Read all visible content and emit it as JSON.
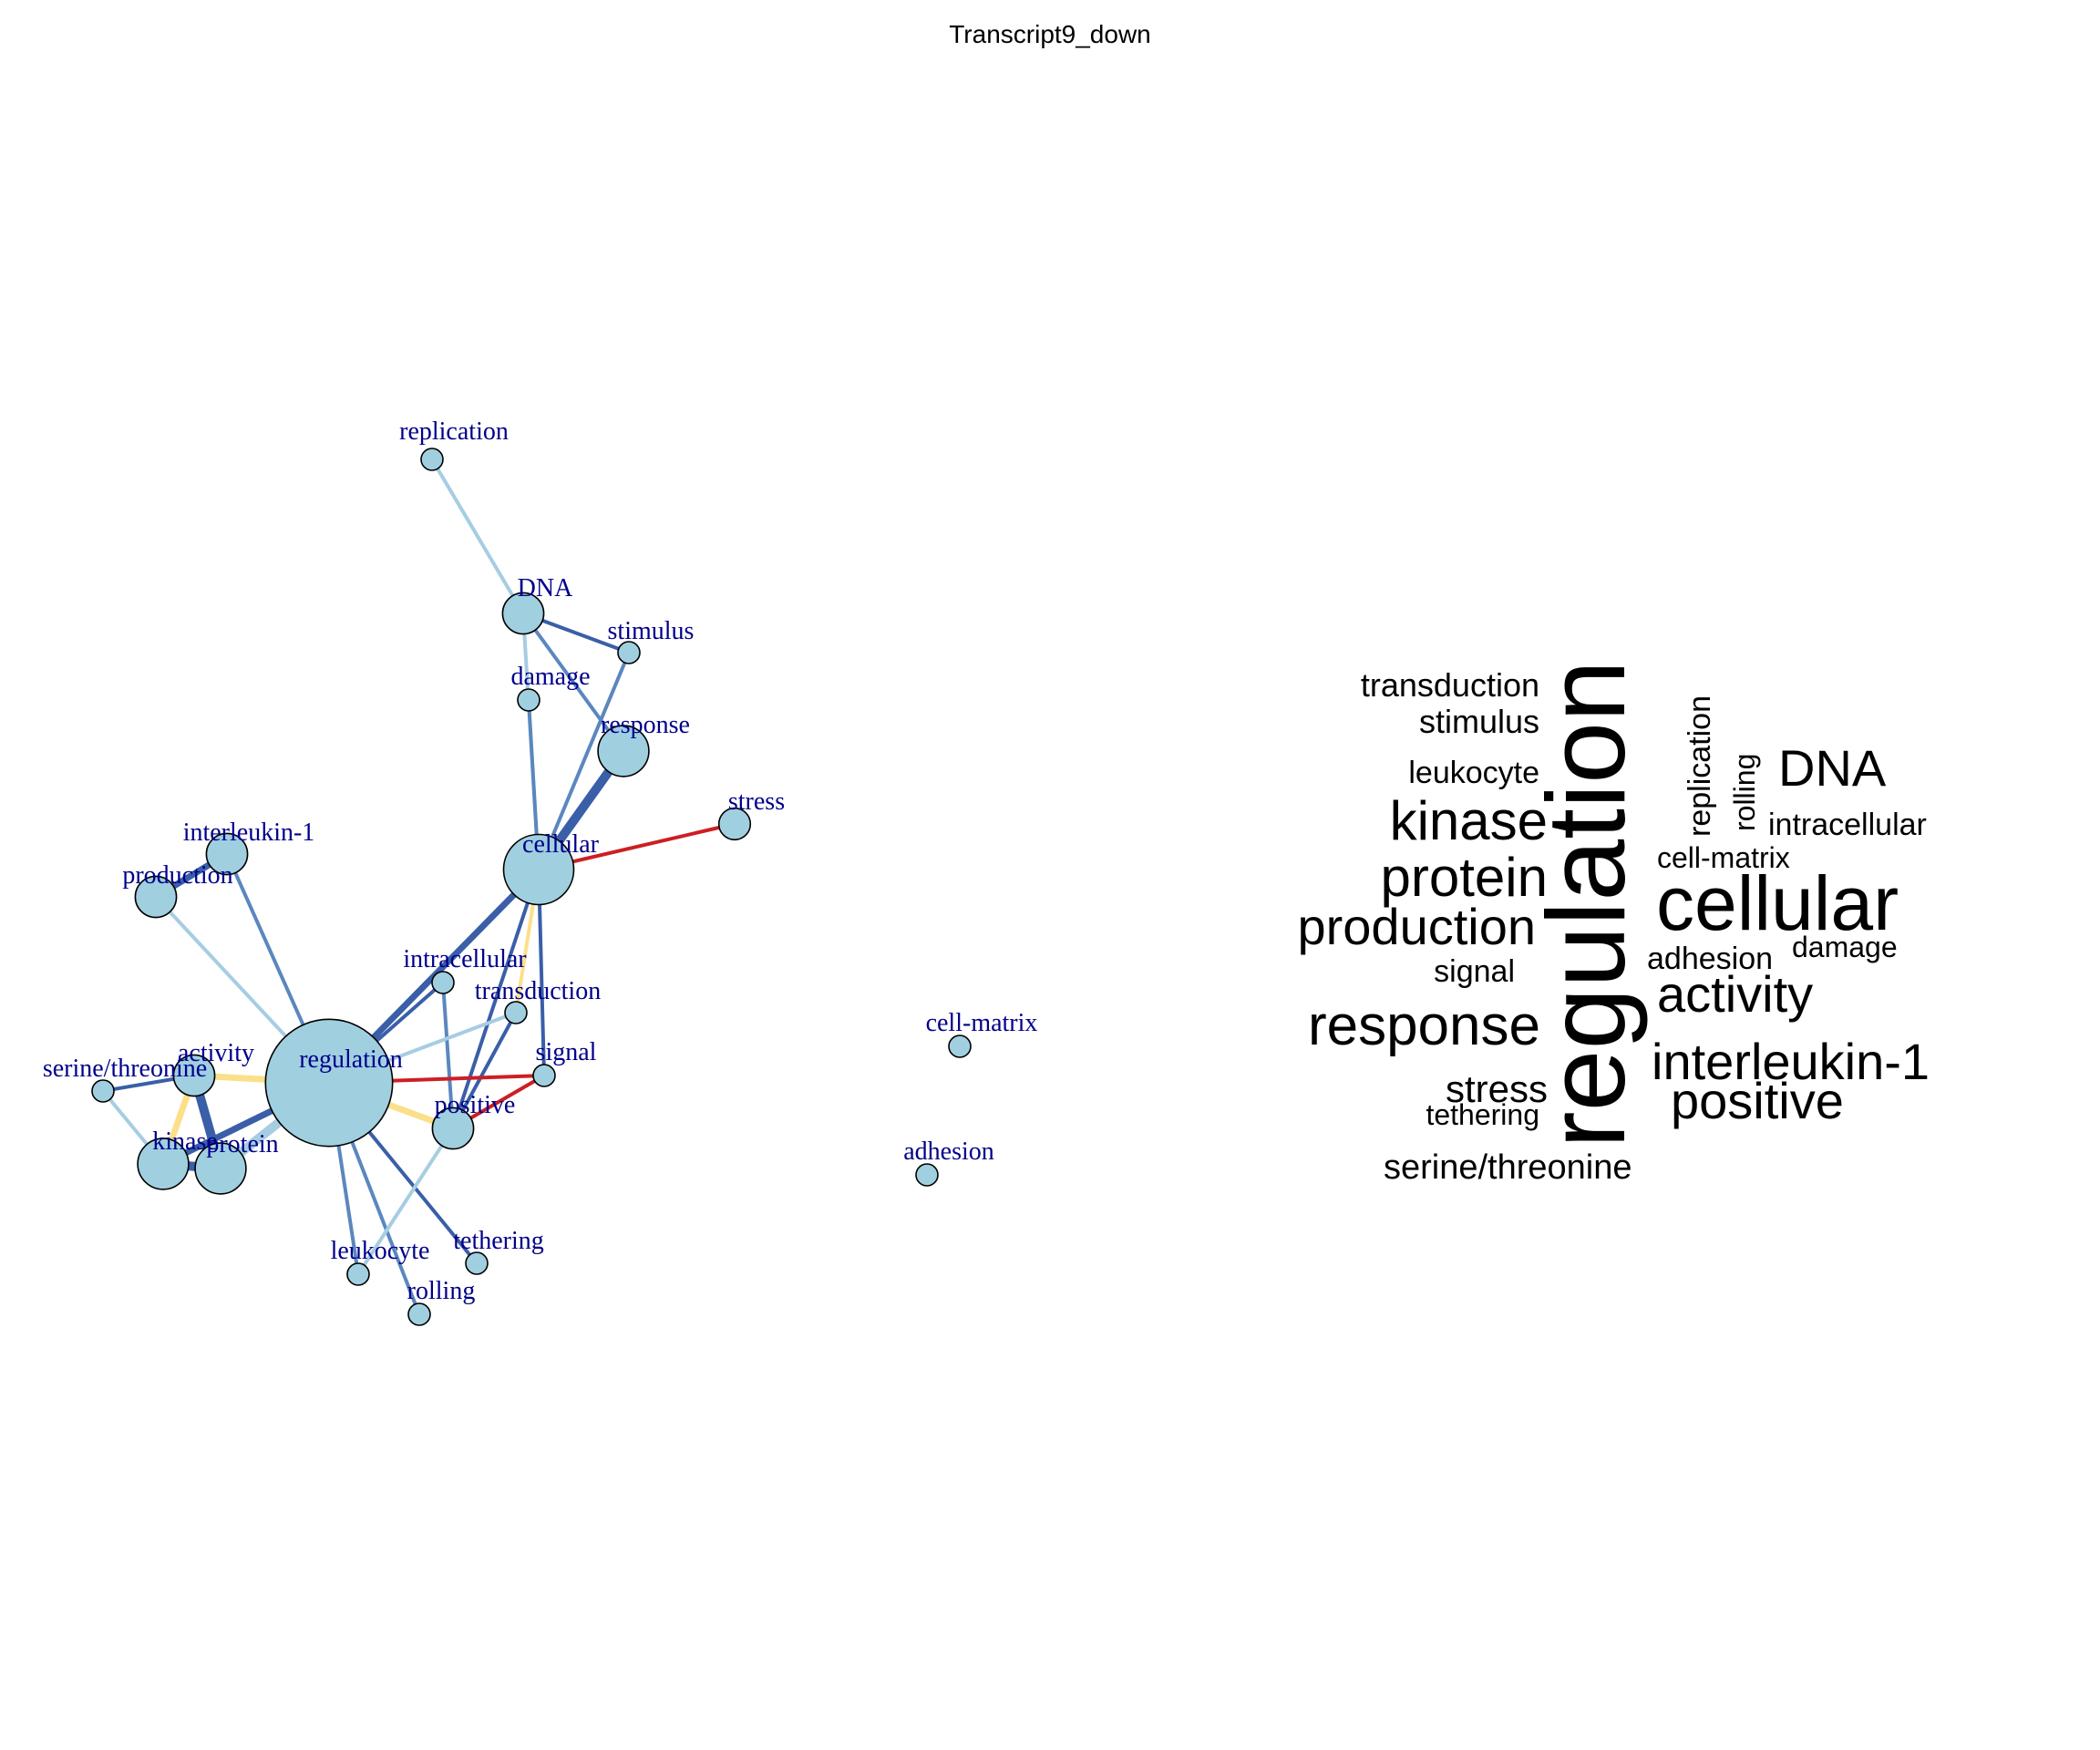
{
  "title": "Transcript9_down",
  "colors": {
    "node_fill": "#a0cfe0",
    "node_stroke": "#000000",
    "label": "#00008b",
    "edge_dark": "#3a5fa8",
    "edge_mid": "#5b87bf",
    "edge_light": "#a6cde2",
    "edge_yellow": "#fbe08a",
    "edge_red": "#cc1f24",
    "cloud_text": "#000000"
  },
  "network": {
    "nodes": [
      {
        "id": "replication",
        "label": "replication",
        "size": 1
      },
      {
        "id": "DNA",
        "label": "DNA",
        "size": 3
      },
      {
        "id": "stimulus",
        "label": "stimulus",
        "size": 1
      },
      {
        "id": "damage",
        "label": "damage",
        "size": 1
      },
      {
        "id": "response",
        "label": "response",
        "size": 4
      },
      {
        "id": "stress",
        "label": "stress",
        "size": 2
      },
      {
        "id": "cellular",
        "label": "cellular",
        "size": 6
      },
      {
        "id": "interleukin-1",
        "label": "interleukin-1",
        "size": 3
      },
      {
        "id": "production",
        "label": "production",
        "size": 3
      },
      {
        "id": "intracellular",
        "label": "intracellular",
        "size": 1
      },
      {
        "id": "transduction",
        "label": "transduction",
        "size": 1
      },
      {
        "id": "signal",
        "label": "signal",
        "size": 1
      },
      {
        "id": "regulation",
        "label": "regulation",
        "size": 10
      },
      {
        "id": "activity",
        "label": "activity",
        "size": 3
      },
      {
        "id": "serine/threonine",
        "label": "serine/threonine",
        "size": 1
      },
      {
        "id": "positive",
        "label": "positive",
        "size": 3
      },
      {
        "id": "kinase",
        "label": "kinase",
        "size": 4
      },
      {
        "id": "protein",
        "label": "protein",
        "size": 4
      },
      {
        "id": "leukocyte",
        "label": "leukocyte",
        "size": 1
      },
      {
        "id": "tethering",
        "label": "tethering",
        "size": 1
      },
      {
        "id": "rolling",
        "label": "rolling",
        "size": 1
      },
      {
        "id": "cell-matrix",
        "label": "cell-matrix",
        "size": 1
      },
      {
        "id": "adhesion",
        "label": "adhesion",
        "size": 1
      }
    ],
    "edges": [
      {
        "source": "replication",
        "target": "DNA",
        "color": "edge_light",
        "weight": 1
      },
      {
        "source": "DNA",
        "target": "stimulus",
        "color": "edge_dark",
        "weight": 1
      },
      {
        "source": "DNA",
        "target": "response",
        "color": "edge_mid",
        "weight": 1
      },
      {
        "source": "DNA",
        "target": "cellular",
        "color": "edge_light",
        "weight": 1
      },
      {
        "source": "damage",
        "target": "cellular",
        "color": "edge_mid",
        "weight": 1
      },
      {
        "source": "stimulus",
        "target": "cellular",
        "color": "edge_mid",
        "weight": 1
      },
      {
        "source": "response",
        "target": "cellular",
        "color": "edge_dark",
        "weight": 3
      },
      {
        "source": "stress",
        "target": "cellular",
        "color": "edge_red",
        "weight": 1
      },
      {
        "source": "cellular",
        "target": "regulation",
        "color": "edge_dark",
        "weight": 2
      },
      {
        "source": "cellular",
        "target": "positive",
        "color": "edge_dark",
        "weight": 1
      },
      {
        "source": "cellular",
        "target": "transduction",
        "color": "edge_yellow",
        "weight": 1
      },
      {
        "source": "cellular",
        "target": "signal",
        "color": "edge_dark",
        "weight": 1
      },
      {
        "source": "interleukin-1",
        "target": "production",
        "color": "edge_dark",
        "weight": 2
      },
      {
        "source": "interleukin-1",
        "target": "regulation",
        "color": "edge_mid",
        "weight": 1
      },
      {
        "source": "production",
        "target": "regulation",
        "color": "edge_light",
        "weight": 1
      },
      {
        "source": "intracellular",
        "target": "regulation",
        "color": "edge_dark",
        "weight": 1
      },
      {
        "source": "intracellular",
        "target": "positive",
        "color": "edge_mid",
        "weight": 1
      },
      {
        "source": "transduction",
        "target": "regulation",
        "color": "edge_light",
        "weight": 1
      },
      {
        "source": "transduction",
        "target": "positive",
        "color": "edge_dark",
        "weight": 1
      },
      {
        "source": "signal",
        "target": "regulation",
        "color": "edge_red",
        "weight": 1
      },
      {
        "source": "signal",
        "target": "positive",
        "color": "edge_red",
        "weight": 1
      },
      {
        "source": "regulation",
        "target": "positive",
        "color": "edge_yellow",
        "weight": 2
      },
      {
        "source": "regulation",
        "target": "activity",
        "color": "edge_yellow",
        "weight": 2
      },
      {
        "source": "regulation",
        "target": "protein",
        "color": "edge_light",
        "weight": 3
      },
      {
        "source": "regulation",
        "target": "kinase",
        "color": "edge_dark",
        "weight": 2
      },
      {
        "source": "regulation",
        "target": "leukocyte",
        "color": "edge_mid",
        "weight": 1
      },
      {
        "source": "regulation",
        "target": "rolling",
        "color": "edge_mid",
        "weight": 1
      },
      {
        "source": "regulation",
        "target": "tethering",
        "color": "edge_dark",
        "weight": 1
      },
      {
        "source": "activity",
        "target": "serine/threonine",
        "color": "edge_dark",
        "weight": 1
      },
      {
        "source": "activity",
        "target": "kinase",
        "color": "edge_yellow",
        "weight": 2
      },
      {
        "source": "activity",
        "target": "protein",
        "color": "edge_dark",
        "weight": 3
      },
      {
        "source": "serine/threonine",
        "target": "kinase",
        "color": "edge_light",
        "weight": 1
      },
      {
        "source": "kinase",
        "target": "protein",
        "color": "edge_dark",
        "weight": 3
      },
      {
        "source": "positive",
        "target": "leukocyte",
        "color": "edge_light",
        "weight": 1
      }
    ]
  },
  "wordcloud": {
    "words": [
      {
        "text": "regulation",
        "size": 10,
        "rotated": true
      },
      {
        "text": "cellular",
        "size": 6,
        "rotated": false
      },
      {
        "text": "response",
        "size": 4,
        "rotated": false
      },
      {
        "text": "kinase",
        "size": 4,
        "rotated": false
      },
      {
        "text": "protein",
        "size": 4,
        "rotated": false
      },
      {
        "text": "production",
        "size": 3,
        "rotated": false
      },
      {
        "text": "DNA",
        "size": 3,
        "rotated": false
      },
      {
        "text": "activity",
        "size": 3,
        "rotated": false
      },
      {
        "text": "interleukin-1",
        "size": 3,
        "rotated": false
      },
      {
        "text": "positive",
        "size": 3,
        "rotated": false
      },
      {
        "text": "stress",
        "size": 2,
        "rotated": false
      },
      {
        "text": "transduction",
        "size": 1,
        "rotated": false
      },
      {
        "text": "stimulus",
        "size": 1,
        "rotated": false
      },
      {
        "text": "leukocyte",
        "size": 1,
        "rotated": false
      },
      {
        "text": "replication",
        "size": 1,
        "rotated": true
      },
      {
        "text": "rolling",
        "size": 1,
        "rotated": true
      },
      {
        "text": "intracellular",
        "size": 1,
        "rotated": false
      },
      {
        "text": "cell-matrix",
        "size": 1,
        "rotated": false
      },
      {
        "text": "damage",
        "size": 1,
        "rotated": false
      },
      {
        "text": "adhesion",
        "size": 1,
        "rotated": false
      },
      {
        "text": "signal",
        "size": 1,
        "rotated": false
      },
      {
        "text": "tethering",
        "size": 1,
        "rotated": false
      },
      {
        "text": "serine/threonine",
        "size": 1,
        "rotated": false
      }
    ]
  }
}
